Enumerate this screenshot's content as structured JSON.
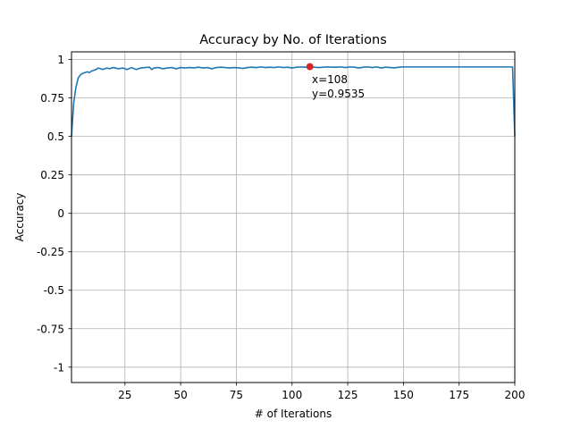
{
  "chart_data": {
    "type": "line",
    "title": "Accuracy by No. of Iterations",
    "xlabel": "# of Iterations",
    "ylabel": "Accuracy",
    "xlim": [
      1,
      200
    ],
    "ylim": [
      -1.1,
      1.05
    ],
    "grid": true,
    "x_ticks": [
      25,
      50,
      75,
      100,
      125,
      150,
      175,
      200
    ],
    "x_tick_labels": [
      "25",
      "50",
      "75",
      "100",
      "125",
      "150",
      "175",
      "200"
    ],
    "y_ticks": [
      1,
      0.75,
      0.5,
      0.25,
      0,
      -0.25,
      -0.5,
      -0.75,
      -1
    ],
    "y_tick_labels": [
      "1",
      "0.75",
      "0.5",
      "0.25",
      "0",
      "-0.25",
      "-0.5",
      "-0.75",
      "-1"
    ],
    "line_color": "#1f77b4",
    "marker_color": "#d62728",
    "series": [
      {
        "x": [
          1,
          2,
          3,
          4,
          5,
          6,
          7,
          8,
          9,
          10,
          11,
          12,
          13,
          14,
          15,
          16,
          17,
          18,
          19,
          20,
          22,
          24,
          26,
          28,
          30,
          32,
          34,
          36,
          37,
          38,
          40,
          42,
          44,
          46,
          48,
          50,
          52,
          54,
          56,
          58,
          60,
          62,
          64,
          66,
          68,
          70,
          72,
          74,
          76,
          78,
          80,
          82,
          84,
          86,
          88,
          90,
          92,
          94,
          96,
          98,
          100,
          102,
          104,
          106,
          108,
          110,
          112,
          114,
          116,
          118,
          120,
          122,
          124,
          126,
          128,
          130,
          132,
          134,
          136,
          138,
          140,
          142,
          144,
          146,
          148,
          150,
          155,
          160,
          170,
          180,
          190,
          199,
          200
        ],
        "y": [
          0.5,
          0.72,
          0.82,
          0.88,
          0.9,
          0.91,
          0.915,
          0.92,
          0.915,
          0.925,
          0.93,
          0.935,
          0.945,
          0.94,
          0.935,
          0.94,
          0.945,
          0.94,
          0.945,
          0.948,
          0.94,
          0.945,
          0.935,
          0.948,
          0.935,
          0.945,
          0.948,
          0.95,
          0.935,
          0.945,
          0.948,
          0.94,
          0.945,
          0.948,
          0.94,
          0.948,
          0.945,
          0.948,
          0.946,
          0.95,
          0.945,
          0.948,
          0.94,
          0.948,
          0.95,
          0.948,
          0.945,
          0.948,
          0.946,
          0.942,
          0.948,
          0.95,
          0.948,
          0.952,
          0.948,
          0.95,
          0.948,
          0.952,
          0.948,
          0.95,
          0.945,
          0.95,
          0.952,
          0.95,
          0.9535,
          0.95,
          0.948,
          0.95,
          0.952,
          0.95,
          0.95,
          0.952,
          0.948,
          0.952,
          0.95,
          0.945,
          0.95,
          0.952,
          0.948,
          0.952,
          0.945,
          0.95,
          0.948,
          0.946,
          0.95,
          0.952,
          0.952,
          0.952,
          0.952,
          0.952,
          0.952,
          0.952,
          0.5
        ]
      }
    ],
    "highlight_point": {
      "x": 108,
      "y": 0.9535
    },
    "annotation": {
      "line1": "x=108",
      "line2": "y=0.9535"
    }
  }
}
